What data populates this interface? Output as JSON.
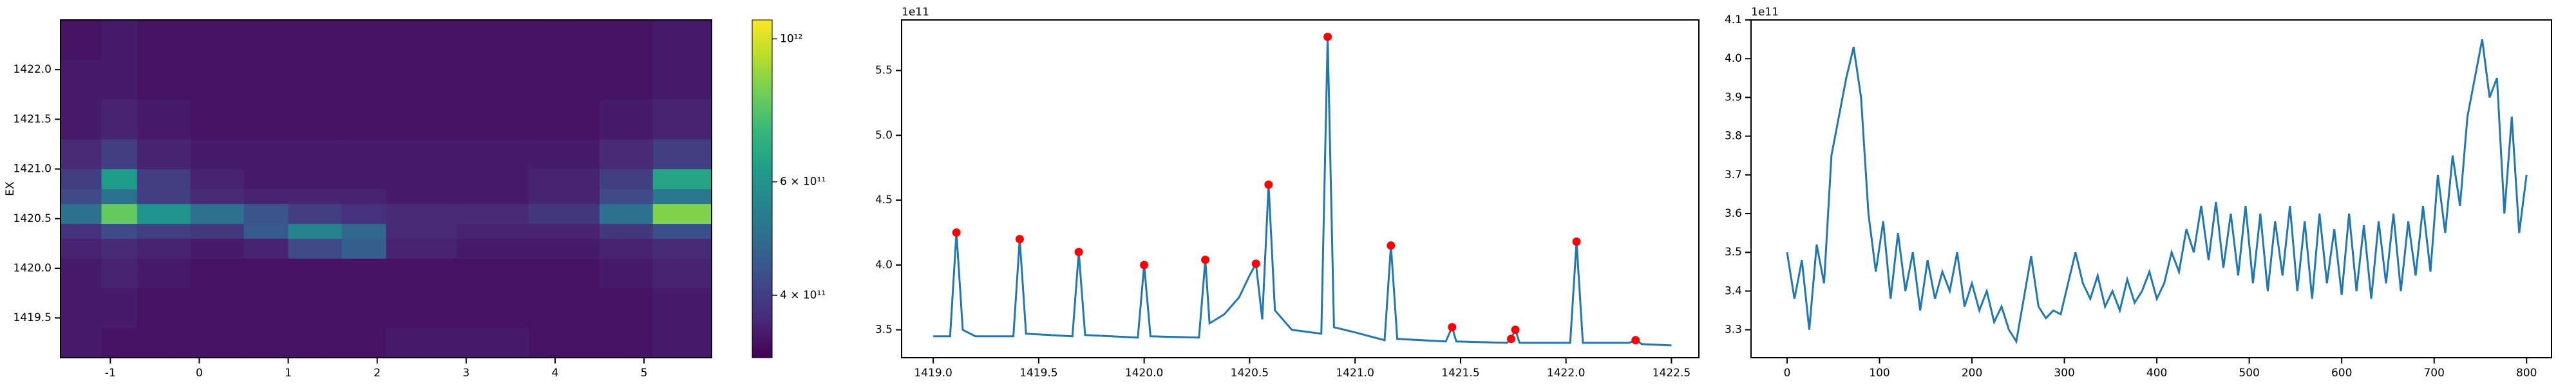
{
  "chart_data": [
    {
      "type": "heatmap",
      "ylabel": "EX",
      "colormap": "viridis",
      "color_scale": "log",
      "xlim": [
        -1.56,
        5.76
      ],
      "ylim": [
        1419.1,
        1422.5
      ],
      "xticks": [
        -1,
        0,
        1,
        2,
        3,
        4,
        5
      ],
      "yticks": [
        1419.5,
        {
          "value": 1420,
          "label": "1420.0"
        },
        1420.5,
        {
          "value": 1421,
          "label": "1421.0"
        },
        1421.5,
        {
          "value": 1422,
          "label": "1422.0"
        }
      ],
      "x_edges": [
        -1.56,
        -1.1,
        -0.7,
        -0.1,
        0.5,
        1.0,
        1.6,
        2.1,
        2.9,
        3.7,
        4.5,
        5.1,
        5.76
      ],
      "y_edges": [
        1419.1,
        1419.4,
        1419.6,
        1419.8,
        1420.1,
        1420.3,
        1420.45,
        1420.65,
        1420.8,
        1421.0,
        1421.3,
        1421.7,
        1422.1,
        1422.5
      ],
      "z": [
        [
          350000000000.0,
          340000000000.0,
          340000000000.0,
          340000000000.0,
          340000000000.0,
          340000000000.0,
          340000000000.0,
          350000000000.0,
          350000000000.0,
          340000000000.0,
          340000000000.0,
          350000000000.0
        ],
        [
          350000000000.0,
          350000000000.0,
          340000000000.0,
          340000000000.0,
          340000000000.0,
          340000000000.0,
          340000000000.0,
          340000000000.0,
          340000000000.0,
          340000000000.0,
          340000000000.0,
          350000000000.0
        ],
        [
          350000000000.0,
          350000000000.0,
          340000000000.0,
          340000000000.0,
          340000000000.0,
          340000000000.0,
          340000000000.0,
          340000000000.0,
          340000000000.0,
          340000000000.0,
          340000000000.0,
          350000000000.0
        ],
        [
          350000000000.0,
          360000000000.0,
          350000000000.0,
          340000000000.0,
          340000000000.0,
          340000000000.0,
          340000000000.0,
          340000000000.0,
          340000000000.0,
          340000000000.0,
          350000000000.0,
          360000000000.0
        ],
        [
          360000000000.0,
          370000000000.0,
          360000000000.0,
          350000000000.0,
          360000000000.0,
          420000000000.0,
          460000000000.0,
          360000000000.0,
          350000000000.0,
          350000000000.0,
          360000000000.0,
          370000000000.0
        ],
        [
          380000000000.0,
          420000000000.0,
          400000000000.0,
          390000000000.0,
          450000000000.0,
          550000000000.0,
          480000000000.0,
          370000000000.0,
          360000000000.0,
          360000000000.0,
          390000000000.0,
          430000000000.0
        ],
        [
          500000000000.0,
          800000000000.0,
          600000000000.0,
          500000000000.0,
          440000000000.0,
          400000000000.0,
          380000000000.0,
          370000000000.0,
          370000000000.0,
          390000000000.0,
          500000000000.0,
          850000000000.0
        ],
        [
          420000000000.0,
          500000000000.0,
          400000000000.0,
          370000000000.0,
          360000000000.0,
          360000000000.0,
          360000000000.0,
          350000000000.0,
          350000000000.0,
          360000000000.0,
          420000000000.0,
          520000000000.0
        ],
        [
          400000000000.0,
          620000000000.0,
          400000000000.0,
          360000000000.0,
          350000000000.0,
          350000000000.0,
          350000000000.0,
          350000000000.0,
          350000000000.0,
          360000000000.0,
          400000000000.0,
          650000000000.0
        ],
        [
          370000000000.0,
          400000000000.0,
          360000000000.0,
          350000000000.0,
          350000000000.0,
          350000000000.0,
          350000000000.0,
          350000000000.0,
          350000000000.0,
          350000000000.0,
          370000000000.0,
          400000000000.0
        ],
        [
          350000000000.0,
          360000000000.0,
          350000000000.0,
          340000000000.0,
          340000000000.0,
          340000000000.0,
          340000000000.0,
          340000000000.0,
          340000000000.0,
          340000000000.0,
          350000000000.0,
          360000000000.0
        ],
        [
          350000000000.0,
          350000000000.0,
          340000000000.0,
          340000000000.0,
          340000000000.0,
          340000000000.0,
          340000000000.0,
          340000000000.0,
          340000000000.0,
          340000000000.0,
          340000000000.0,
          350000000000.0
        ],
        [
          340000000000.0,
          350000000000.0,
          340000000000.0,
          340000000000.0,
          340000000000.0,
          340000000000.0,
          340000000000.0,
          340000000000.0,
          340000000000.0,
          340000000000.0,
          340000000000.0,
          350000000000.0
        ]
      ],
      "clim": [
        320000000000.0,
        1070000000000.0
      ],
      "colorbar_ticks": [
        {
          "value": 400000000000.0,
          "label": "4 × 10¹¹"
        },
        {
          "value": 600000000000.0,
          "label": "6 × 10¹¹"
        },
        {
          "value": 1000000000000.0,
          "label": "10¹²"
        }
      ]
    },
    {
      "type": "line",
      "y_offset_label": "1e11",
      "color": "#1f77b4",
      "xlim": [
        1418.85,
        1422.63
      ],
      "ylim": [
        328500000000.0,
        589000000000.0
      ],
      "xticks": [
        {
          "value": 1419,
          "label": "1419.0"
        },
        1419.5,
        {
          "value": 1420,
          "label": "1420.0"
        },
        1420.5,
        {
          "value": 1421,
          "label": "1421.0"
        },
        1421.5,
        {
          "value": 1422,
          "label": "1422.0"
        },
        1422.5
      ],
      "yticks": [
        {
          "value": 350000000000.0,
          "label": "3.5"
        },
        {
          "value": 400000000000.0,
          "label": "4.0"
        },
        {
          "value": 450000000000.0,
          "label": "4.5"
        },
        {
          "value": 500000000000.0,
          "label": "5.0"
        },
        {
          "value": 550000000000.0,
          "label": "5.5"
        }
      ],
      "x": [
        1419.0,
        1419.08,
        1419.11,
        1419.14,
        1419.2,
        1419.38,
        1419.41,
        1419.44,
        1419.66,
        1419.69,
        1419.72,
        1419.97,
        1420.0,
        1420.03,
        1420.26,
        1420.29,
        1420.31,
        1420.38,
        1420.45,
        1420.5,
        1420.53,
        1420.56,
        1420.59,
        1420.62,
        1420.7,
        1420.84,
        1420.87,
        1420.9,
        1421.0,
        1421.14,
        1421.17,
        1421.2,
        1421.43,
        1421.46,
        1421.48,
        1421.72,
        1421.74,
        1421.76,
        1421.78,
        1422.02,
        1422.05,
        1422.08,
        1422.3,
        1422.33,
        1422.36,
        1422.5
      ],
      "values": [
        345000000000.0,
        345000000000.0,
        425000000000.0,
        350000000000.0,
        345000000000.0,
        345000000000.0,
        420000000000.0,
        347000000000.0,
        345000000000.0,
        410000000000.0,
        346000000000.0,
        344000000000.0,
        400000000000.0,
        345000000000.0,
        344000000000.0,
        404000000000.0,
        355000000000.0,
        362000000000.0,
        375000000000.0,
        392000000000.0,
        401000000000.0,
        358000000000.0,
        462000000000.0,
        365000000000.0,
        350000000000.0,
        347000000000.0,
        576000000000.0,
        352000000000.0,
        348000000000.0,
        342000000000.0,
        415000000000.0,
        343000000000.0,
        341000000000.0,
        352000000000.0,
        341000000000.0,
        340000000000.0,
        343000000000.0,
        350000000000.0,
        340000000000.0,
        340000000000.0,
        418000000000.0,
        340000000000.0,
        340000000000.0,
        342000000000.0,
        339000000000.0,
        338000000000.0
      ],
      "markers": {
        "color": "#ff0000",
        "x": [
          1419.11,
          1419.41,
          1419.69,
          1420.0,
          1420.29,
          1420.53,
          1420.59,
          1420.87,
          1421.17,
          1421.46,
          1421.74,
          1421.76,
          1422.05,
          1422.33
        ],
        "values": [
          425000000000.0,
          420000000000.0,
          410000000000.0,
          400000000000.0,
          404000000000.0,
          401000000000.0,
          462000000000.0,
          576000000000.0,
          415000000000.0,
          352000000000.0,
          343000000000.0,
          350000000000.0,
          418000000000.0,
          342000000000.0
        ]
      }
    },
    {
      "type": "line",
      "y_offset_label": "1e11",
      "color": "#1f77b4",
      "xlim": [
        -39,
        827
      ],
      "ylim": [
        322800000000.0,
        410000000000.0
      ],
      "xticks": [
        0,
        100,
        200,
        300,
        400,
        500,
        600,
        700,
        800
      ],
      "yticks": [
        {
          "value": 330000000000.0,
          "label": "3.3"
        },
        {
          "value": 340000000000.0,
          "label": "3.4"
        },
        {
          "value": 350000000000.0,
          "label": "3.5"
        },
        {
          "value": 360000000000.0,
          "label": "3.6"
        },
        {
          "value": 370000000000.0,
          "label": "3.7"
        },
        {
          "value": 380000000000.0,
          "label": "3.8"
        },
        {
          "value": 390000000000.0,
          "label": "3.9"
        },
        {
          "value": 400000000000.0,
          "label": "4.0"
        },
        {
          "value": 410000000000.0,
          "label": "4.1"
        }
      ],
      "x": [
        0,
        8,
        16,
        24,
        32,
        40,
        48,
        56,
        64,
        72,
        80,
        88,
        96,
        104,
        112,
        120,
        128,
        136,
        144,
        152,
        160,
        168,
        176,
        184,
        192,
        200,
        208,
        216,
        224,
        232,
        240,
        248,
        256,
        264,
        272,
        280,
        288,
        296,
        304,
        312,
        320,
        328,
        336,
        344,
        352,
        360,
        368,
        376,
        384,
        392,
        400,
        408,
        416,
        424,
        432,
        440,
        448,
        456,
        464,
        472,
        480,
        488,
        496,
        504,
        512,
        520,
        528,
        536,
        544,
        552,
        560,
        568,
        576,
        584,
        592,
        600,
        608,
        616,
        624,
        632,
        640,
        648,
        656,
        664,
        672,
        680,
        688,
        696,
        704,
        712,
        720,
        728,
        736,
        744,
        752,
        760,
        768,
        776,
        784,
        792,
        800
      ],
      "values": [
        350000000000.0,
        338000000000.0,
        348000000000.0,
        330000000000.0,
        352000000000.0,
        342000000000.0,
        375000000000.0,
        385000000000.0,
        395000000000.0,
        403000000000.0,
        390000000000.0,
        360000000000.0,
        345000000000.0,
        358000000000.0,
        338000000000.0,
        355000000000.0,
        340000000000.0,
        350000000000.0,
        335000000000.0,
        348000000000.0,
        338000000000.0,
        345000000000.0,
        340000000000.0,
        350000000000.0,
        336000000000.0,
        342000000000.0,
        335000000000.0,
        340000000000.0,
        332000000000.0,
        336000000000.0,
        330000000000.0,
        327000000000.0,
        338000000000.0,
        349000000000.0,
        336000000000.0,
        333000000000.0,
        335000000000.0,
        334000000000.0,
        342000000000.0,
        350000000000.0,
        342000000000.0,
        338000000000.0,
        344000000000.0,
        336000000000.0,
        340000000000.0,
        335000000000.0,
        343000000000.0,
        337000000000.0,
        340000000000.0,
        345000000000.0,
        338000000000.0,
        342000000000.0,
        350000000000.0,
        345000000000.0,
        356000000000.0,
        350000000000.0,
        362000000000.0,
        348000000000.0,
        363000000000.0,
        346000000000.0,
        360000000000.0,
        344000000000.0,
        362000000000.0,
        342000000000.0,
        360000000000.0,
        340000000000.0,
        358000000000.0,
        344000000000.0,
        362000000000.0,
        340000000000.0,
        358000000000.0,
        338000000000.0,
        360000000000.0,
        342000000000.0,
        356000000000.0,
        339000000000.0,
        360000000000.0,
        340000000000.0,
        357000000000.0,
        338000000000.0,
        358000000000.0,
        342000000000.0,
        360000000000.0,
        340000000000.0,
        358000000000.0,
        344000000000.0,
        362000000000.0,
        345000000000.0,
        370000000000.0,
        355000000000.0,
        375000000000.0,
        362000000000.0,
        385000000000.0,
        395000000000.0,
        405000000000.0,
        390000000000.0,
        395000000000.0,
        360000000000.0,
        385000000000.0,
        355000000000.0,
        370000000000.0
      ]
    }
  ]
}
